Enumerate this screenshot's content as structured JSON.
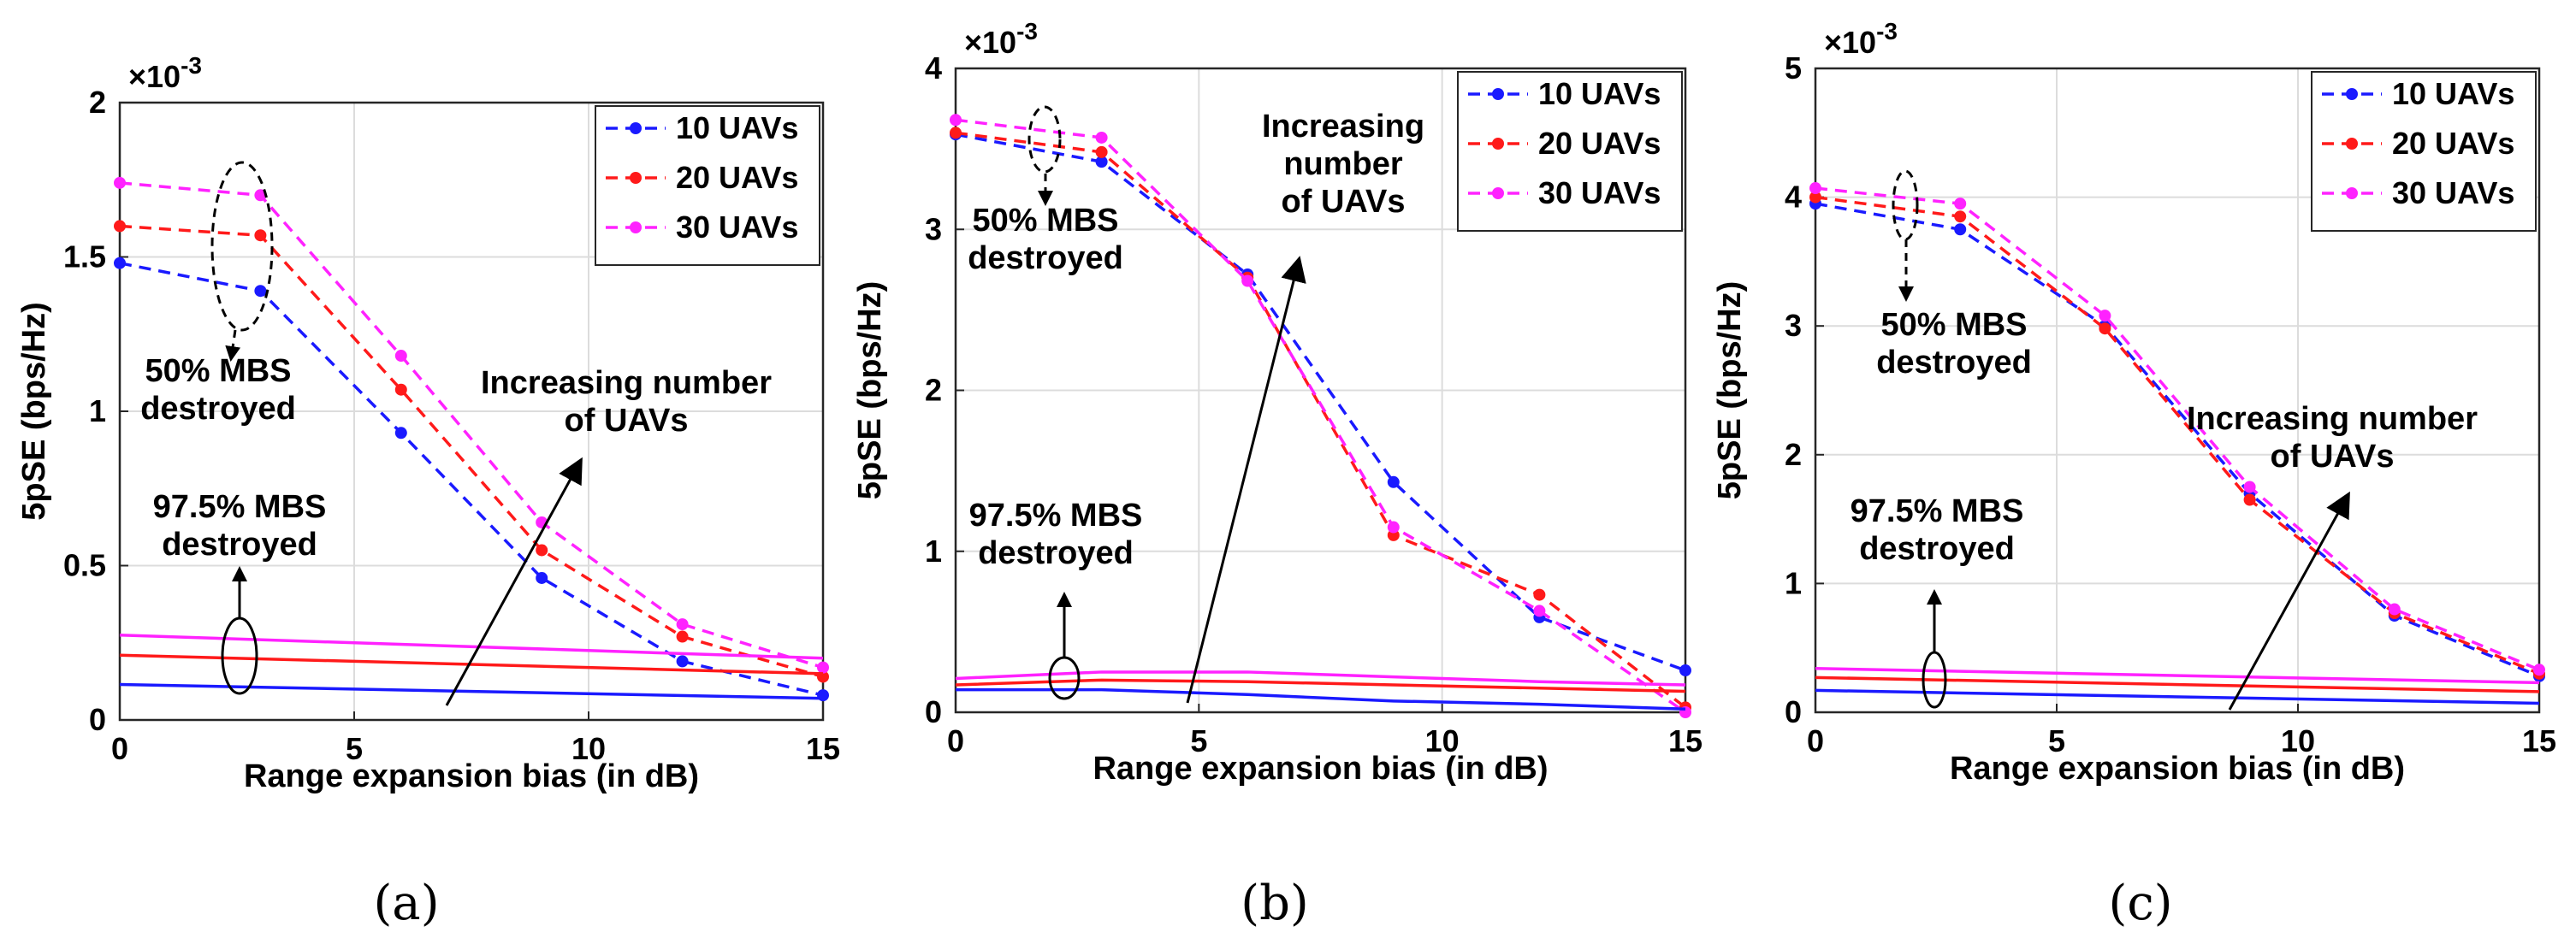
{
  "figure": {
    "panels": [
      "(a)",
      "(b)",
      "(c)"
    ]
  },
  "chart_data": [
    {
      "type": "line",
      "panel": "(a)",
      "xlabel": "Range expansion bias (in dB)",
      "ylabel": "5pSE (bps/Hz)",
      "multiplier": "×10",
      "multiplier_exp": "-3",
      "xlim": [
        0,
        15
      ],
      "ylim": [
        0,
        2
      ],
      "xticks": [
        0,
        5,
        10,
        15
      ],
      "yticks": [
        0,
        0.5,
        1,
        1.5,
        2
      ],
      "ytick_labels": [
        "0",
        "0.5",
        "1",
        "1.5",
        "2"
      ],
      "legend": "top-right",
      "grid": true,
      "series": [
        {
          "name": "10 UAVs",
          "color": "#1a1aff",
          "style": "dashed",
          "x": [
            0,
            3,
            6,
            9,
            12,
            15
          ],
          "values": [
            1.48,
            1.39,
            0.93,
            0.46,
            0.19,
            0.08
          ]
        },
        {
          "name": "20 UAVs",
          "color": "#ff1a1a",
          "style": "dashed",
          "x": [
            0,
            3,
            6,
            9,
            12,
            15
          ],
          "values": [
            1.6,
            1.57,
            1.07,
            0.55,
            0.27,
            0.14
          ]
        },
        {
          "name": "30 UAVs",
          "color": "#ff22ff",
          "style": "dashed",
          "x": [
            0,
            3,
            6,
            9,
            12,
            15
          ],
          "values": [
            1.74,
            1.7,
            1.18,
            0.64,
            0.31,
            0.17
          ]
        },
        {
          "name": "10 UAVs (97.5% MBS destroyed)",
          "color": "#1a1aff",
          "style": "solid",
          "legend": false,
          "x": [
            0,
            15
          ],
          "values": [
            0.115,
            0.07
          ]
        },
        {
          "name": "20 UAVs (97.5% MBS destroyed)",
          "color": "#ff1a1a",
          "style": "solid",
          "legend": false,
          "x": [
            0,
            15
          ],
          "values": [
            0.21,
            0.15
          ]
        },
        {
          "name": "30 UAVs (97.5% MBS destroyed)",
          "color": "#ff22ff",
          "style": "solid",
          "legend": false,
          "x": [
            0,
            15
          ],
          "values": [
            0.275,
            0.2
          ]
        }
      ],
      "annotations": [
        {
          "lines": [
            "50% MBS",
            "destroyed"
          ]
        },
        {
          "lines": [
            "97.5% MBS",
            "destroyed"
          ]
        },
        {
          "lines": [
            "Increasing number",
            "of UAVs"
          ]
        }
      ]
    },
    {
      "type": "line",
      "panel": "(b)",
      "xlabel": "Range expansion bias (in dB)",
      "ylabel": "5pSE (bps/Hz)",
      "multiplier": "×10",
      "multiplier_exp": "-3",
      "xlim": [
        0,
        15
      ],
      "ylim": [
        0,
        4
      ],
      "xticks": [
        0,
        5,
        10,
        15
      ],
      "yticks": [
        0,
        1,
        2,
        3,
        4
      ],
      "ytick_labels": [
        "0",
        "1",
        "2",
        "3",
        "4"
      ],
      "legend": "top-right",
      "grid": true,
      "series": [
        {
          "name": "10 UAVs",
          "color": "#1a1aff",
          "style": "dashed",
          "x": [
            0,
            3,
            6,
            9,
            12,
            15
          ],
          "values": [
            3.59,
            3.42,
            2.72,
            1.43,
            0.59,
            0.26
          ]
        },
        {
          "name": "20 UAVs",
          "color": "#ff1a1a",
          "style": "dashed",
          "x": [
            0,
            3,
            6,
            9,
            12,
            15
          ],
          "values": [
            3.6,
            3.48,
            2.7,
            1.1,
            0.73,
            0.03
          ]
        },
        {
          "name": "30 UAVs",
          "color": "#ff22ff",
          "style": "dashed",
          "x": [
            0,
            3,
            6,
            9,
            12,
            15
          ],
          "values": [
            3.68,
            3.57,
            2.68,
            1.15,
            0.63,
            0.0
          ]
        },
        {
          "name": "10 UAVs (97.5% MBS destroyed)",
          "color": "#1a1aff",
          "style": "solid",
          "legend": false,
          "x": [
            0,
            3,
            6,
            9,
            12,
            15
          ],
          "values": [
            0.14,
            0.14,
            0.11,
            0.07,
            0.05,
            0.02
          ]
        },
        {
          "name": "20 UAVs (97.5% MBS destroyed)",
          "color": "#ff1a1a",
          "style": "solid",
          "legend": false,
          "x": [
            0,
            3,
            6,
            9,
            12,
            15
          ],
          "values": [
            0.17,
            0.2,
            0.19,
            0.17,
            0.15,
            0.13
          ]
        },
        {
          "name": "30 UAVs (97.5% MBS destroyed)",
          "color": "#ff22ff",
          "style": "solid",
          "legend": false,
          "x": [
            0,
            3,
            6,
            9,
            12,
            15
          ],
          "values": [
            0.21,
            0.25,
            0.25,
            0.22,
            0.19,
            0.17
          ]
        }
      ],
      "annotations": [
        {
          "lines": [
            "50% MBS",
            "destroyed"
          ]
        },
        {
          "lines": [
            "97.5% MBS",
            "destroyed"
          ]
        },
        {
          "lines": [
            "Increasing",
            "number",
            "of UAVs"
          ]
        }
      ]
    },
    {
      "type": "line",
      "panel": "(c)",
      "xlabel": "Range expansion bias (in dB)",
      "ylabel": "5pSE (bps/Hz)",
      "multiplier": "×10",
      "multiplier_exp": "-3",
      "xlim": [
        0,
        15
      ],
      "ylim": [
        0,
        5
      ],
      "xticks": [
        0,
        5,
        10,
        15
      ],
      "yticks": [
        0,
        1,
        2,
        3,
        4,
        5
      ],
      "ytick_labels": [
        "0",
        "1",
        "2",
        "3",
        "4",
        "5"
      ],
      "legend": "top-right",
      "grid": true,
      "series": [
        {
          "name": "10 UAVs",
          "color": "#1a1aff",
          "style": "dashed",
          "x": [
            0,
            3,
            6,
            9,
            12,
            15
          ],
          "values": [
            3.95,
            3.75,
            3.0,
            1.7,
            0.75,
            0.28
          ]
        },
        {
          "name": "20 UAVs",
          "color": "#ff1a1a",
          "style": "dashed",
          "x": [
            0,
            3,
            6,
            9,
            12,
            15
          ],
          "values": [
            4.0,
            3.85,
            2.98,
            1.65,
            0.77,
            0.3
          ]
        },
        {
          "name": "30 UAVs",
          "color": "#ff22ff",
          "style": "dashed",
          "x": [
            0,
            3,
            6,
            9,
            12,
            15
          ],
          "values": [
            4.07,
            3.95,
            3.08,
            1.75,
            0.8,
            0.33
          ]
        },
        {
          "name": "10 UAVs (97.5% MBS destroyed)",
          "color": "#1a1aff",
          "style": "solid",
          "legend": false,
          "x": [
            0,
            15
          ],
          "values": [
            0.17,
            0.07
          ]
        },
        {
          "name": "20 UAVs (97.5% MBS destroyed)",
          "color": "#ff1a1a",
          "style": "solid",
          "legend": false,
          "x": [
            0,
            15
          ],
          "values": [
            0.27,
            0.16
          ]
        },
        {
          "name": "30 UAVs (97.5% MBS destroyed)",
          "color": "#ff22ff",
          "style": "solid",
          "legend": false,
          "x": [
            0,
            15
          ],
          "values": [
            0.34,
            0.23
          ]
        }
      ],
      "annotations": [
        {
          "lines": [
            "50% MBS",
            "destroyed"
          ]
        },
        {
          "lines": [
            "97.5% MBS",
            "destroyed"
          ]
        },
        {
          "lines": [
            "Increasing number",
            "of UAVs"
          ]
        }
      ]
    }
  ]
}
